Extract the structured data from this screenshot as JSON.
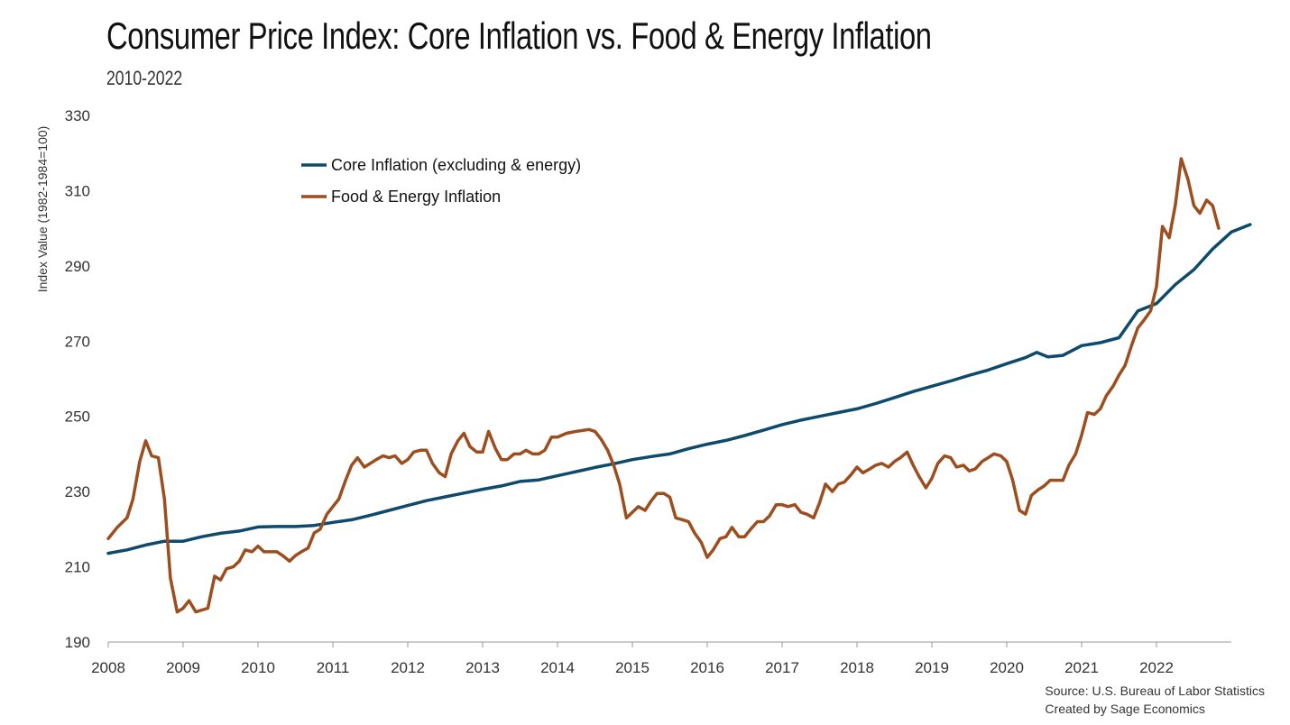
{
  "header": {
    "title": "Consumer Price Index: Core Inflation vs. Food & Energy Inflation",
    "subtitle": "2010-2022"
  },
  "footer": {
    "source_line1": "Source: U.S. Bureau of Labor Statistics",
    "source_line2": "Created by Sage Economics"
  },
  "colors": {
    "core": "#0d4a6b",
    "food_energy": "#9c4e1e",
    "axis": "#999999"
  },
  "chart_data": {
    "type": "line",
    "title": "Consumer Price Index: Core Inflation vs. Food & Energy Inflation",
    "subtitle": "2010-2022",
    "xlabel": "",
    "ylabel": "Index Value (1982-1984=100)",
    "xlim": [
      2008,
      2023
    ],
    "ylim": [
      190,
      330
    ],
    "yticks": [
      190,
      210,
      230,
      250,
      270,
      290,
      310,
      330
    ],
    "xticks": [
      "2008",
      "2009",
      "2010",
      "2011",
      "2012",
      "2013",
      "2014",
      "2015",
      "2016",
      "2017",
      "2018",
      "2019",
      "2020",
      "2021",
      "2022"
    ],
    "grid": false,
    "legend_position": "top-left",
    "series": [
      {
        "name": "Core Inflation (excluding & energy)",
        "color": "#0d4a6b",
        "points": [
          [
            2008.0,
            213.6
          ],
          [
            2008.25,
            214.5
          ],
          [
            2008.5,
            215.8
          ],
          [
            2008.75,
            216.8
          ],
          [
            2009.0,
            216.8
          ],
          [
            2009.25,
            218.0
          ],
          [
            2009.5,
            218.9
          ],
          [
            2009.75,
            219.5
          ],
          [
            2010.0,
            220.6
          ],
          [
            2010.25,
            220.7
          ],
          [
            2010.5,
            220.7
          ],
          [
            2010.75,
            221.0
          ],
          [
            2011.0,
            221.8
          ],
          [
            2011.25,
            222.5
          ],
          [
            2011.5,
            223.7
          ],
          [
            2011.75,
            225.0
          ],
          [
            2012.0,
            226.3
          ],
          [
            2012.25,
            227.6
          ],
          [
            2012.5,
            228.6
          ],
          [
            2012.75,
            229.6
          ],
          [
            2013.0,
            230.6
          ],
          [
            2013.25,
            231.5
          ],
          [
            2013.5,
            232.7
          ],
          [
            2013.75,
            233.1
          ],
          [
            2014.0,
            234.2
          ],
          [
            2014.25,
            235.3
          ],
          [
            2014.5,
            236.4
          ],
          [
            2014.75,
            237.4
          ],
          [
            2015.0,
            238.5
          ],
          [
            2015.25,
            239.3
          ],
          [
            2015.5,
            240.0
          ],
          [
            2015.75,
            241.4
          ],
          [
            2016.0,
            242.6
          ],
          [
            2016.25,
            243.6
          ],
          [
            2016.5,
            244.9
          ],
          [
            2016.75,
            246.3
          ],
          [
            2017.0,
            247.8
          ],
          [
            2017.25,
            249.0
          ],
          [
            2017.5,
            250.0
          ],
          [
            2017.75,
            251.0
          ],
          [
            2018.0,
            252.0
          ],
          [
            2018.25,
            253.4
          ],
          [
            2018.5,
            255.0
          ],
          [
            2018.75,
            256.6
          ],
          [
            2019.0,
            258.0
          ],
          [
            2019.25,
            259.4
          ],
          [
            2019.5,
            260.9
          ],
          [
            2019.75,
            262.3
          ],
          [
            2020.0,
            264.0
          ],
          [
            2020.25,
            265.6
          ],
          [
            2020.4,
            267.0
          ],
          [
            2020.55,
            265.8
          ],
          [
            2020.75,
            266.2
          ],
          [
            2021.0,
            268.8
          ],
          [
            2021.25,
            269.6
          ],
          [
            2021.5,
            270.9
          ],
          [
            2021.75,
            278.0
          ],
          [
            2022.0,
            280.0
          ],
          [
            2022.25,
            285.0
          ],
          [
            2022.5,
            289.0
          ],
          [
            2022.75,
            294.5
          ],
          [
            2023.0,
            299.0
          ],
          [
            2023.25,
            301.0
          ]
        ]
      },
      {
        "name": "Food & Energy Inflation",
        "color": "#9c4e1e",
        "points": [
          [
            2008.0,
            217.5
          ],
          [
            2008.12,
            220.5
          ],
          [
            2008.25,
            223.0
          ],
          [
            2008.33,
            228.0
          ],
          [
            2008.42,
            238.0
          ],
          [
            2008.5,
            243.5
          ],
          [
            2008.58,
            239.5
          ],
          [
            2008.67,
            239.0
          ],
          [
            2008.75,
            228.0
          ],
          [
            2008.83,
            207.0
          ],
          [
            2008.92,
            198.0
          ],
          [
            2009.0,
            199.0
          ],
          [
            2009.08,
            201.0
          ],
          [
            2009.17,
            198.0
          ],
          [
            2009.25,
            198.5
          ],
          [
            2009.33,
            199.0
          ],
          [
            2009.42,
            207.5
          ],
          [
            2009.5,
            206.5
          ],
          [
            2009.58,
            209.5
          ],
          [
            2009.67,
            210.0
          ],
          [
            2009.75,
            211.5
          ],
          [
            2009.83,
            214.5
          ],
          [
            2009.92,
            214.0
          ],
          [
            2010.0,
            215.5
          ],
          [
            2010.08,
            214.0
          ],
          [
            2010.17,
            214.0
          ],
          [
            2010.25,
            214.0
          ],
          [
            2010.33,
            213.0
          ],
          [
            2010.42,
            211.5
          ],
          [
            2010.5,
            213.0
          ],
          [
            2010.58,
            214.0
          ],
          [
            2010.67,
            215.0
          ],
          [
            2010.75,
            219.0
          ],
          [
            2010.83,
            220.0
          ],
          [
            2010.92,
            224.0
          ],
          [
            2011.0,
            226.0
          ],
          [
            2011.08,
            228.0
          ],
          [
            2011.17,
            233.0
          ],
          [
            2011.25,
            237.0
          ],
          [
            2011.33,
            239.0
          ],
          [
            2011.42,
            236.5
          ],
          [
            2011.5,
            237.5
          ],
          [
            2011.58,
            238.5
          ],
          [
            2011.67,
            239.5
          ],
          [
            2011.75,
            239.0
          ],
          [
            2011.83,
            239.5
          ],
          [
            2011.92,
            237.5
          ],
          [
            2012.0,
            238.5
          ],
          [
            2012.08,
            240.5
          ],
          [
            2012.17,
            241.0
          ],
          [
            2012.25,
            241.0
          ],
          [
            2012.33,
            237.5
          ],
          [
            2012.42,
            235.0
          ],
          [
            2012.5,
            234.0
          ],
          [
            2012.58,
            240.0
          ],
          [
            2012.67,
            243.5
          ],
          [
            2012.75,
            245.5
          ],
          [
            2012.83,
            242.0
          ],
          [
            2012.92,
            240.5
          ],
          [
            2013.0,
            240.5
          ],
          [
            2013.08,
            246.0
          ],
          [
            2013.17,
            241.5
          ],
          [
            2013.25,
            238.5
          ],
          [
            2013.33,
            238.5
          ],
          [
            2013.42,
            240.0
          ],
          [
            2013.5,
            240.0
          ],
          [
            2013.58,
            241.0
          ],
          [
            2013.67,
            240.0
          ],
          [
            2013.75,
            240.0
          ],
          [
            2013.83,
            241.0
          ],
          [
            2013.92,
            244.5
          ],
          [
            2014.0,
            244.5
          ],
          [
            2014.12,
            245.5
          ],
          [
            2014.25,
            246.0
          ],
          [
            2014.42,
            246.5
          ],
          [
            2014.5,
            246.0
          ],
          [
            2014.58,
            244.0
          ],
          [
            2014.67,
            241.0
          ],
          [
            2014.75,
            237.0
          ],
          [
            2014.83,
            232.0
          ],
          [
            2014.92,
            223.0
          ],
          [
            2015.0,
            224.5
          ],
          [
            2015.08,
            226.0
          ],
          [
            2015.17,
            225.0
          ],
          [
            2015.25,
            227.5
          ],
          [
            2015.33,
            229.5
          ],
          [
            2015.42,
            229.5
          ],
          [
            2015.5,
            228.5
          ],
          [
            2015.58,
            223.0
          ],
          [
            2015.67,
            222.5
          ],
          [
            2015.75,
            222.0
          ],
          [
            2015.83,
            219.0
          ],
          [
            2015.92,
            216.5
          ],
          [
            2016.0,
            212.5
          ],
          [
            2016.08,
            214.5
          ],
          [
            2016.17,
            217.5
          ],
          [
            2016.25,
            218.0
          ],
          [
            2016.33,
            220.5
          ],
          [
            2016.42,
            218.0
          ],
          [
            2016.5,
            218.0
          ],
          [
            2016.58,
            220.0
          ],
          [
            2016.67,
            222.0
          ],
          [
            2016.75,
            222.0
          ],
          [
            2016.83,
            223.5
          ],
          [
            2016.92,
            226.5
          ],
          [
            2017.0,
            226.5
          ],
          [
            2017.08,
            226.0
          ],
          [
            2017.17,
            226.5
          ],
          [
            2017.25,
            224.5
          ],
          [
            2017.33,
            224.0
          ],
          [
            2017.42,
            223.0
          ],
          [
            2017.5,
            227.0
          ],
          [
            2017.58,
            232.0
          ],
          [
            2017.67,
            230.0
          ],
          [
            2017.75,
            232.0
          ],
          [
            2017.83,
            232.5
          ],
          [
            2017.92,
            234.5
          ],
          [
            2018.0,
            236.5
          ],
          [
            2018.08,
            235.0
          ],
          [
            2018.17,
            236.0
          ],
          [
            2018.25,
            237.0
          ],
          [
            2018.33,
            237.5
          ],
          [
            2018.42,
            236.5
          ],
          [
            2018.5,
            238.0
          ],
          [
            2018.58,
            239.0
          ],
          [
            2018.67,
            240.5
          ],
          [
            2018.75,
            237.0
          ],
          [
            2018.83,
            234.0
          ],
          [
            2018.92,
            231.0
          ],
          [
            2019.0,
            233.5
          ],
          [
            2019.08,
            237.5
          ],
          [
            2019.17,
            239.5
          ],
          [
            2019.25,
            239.0
          ],
          [
            2019.33,
            236.5
          ],
          [
            2019.42,
            237.0
          ],
          [
            2019.5,
            235.5
          ],
          [
            2019.58,
            236.0
          ],
          [
            2019.67,
            238.0
          ],
          [
            2019.75,
            239.0
          ],
          [
            2019.83,
            240.0
          ],
          [
            2019.92,
            239.5
          ],
          [
            2020.0,
            238.0
          ],
          [
            2020.08,
            233.0
          ],
          [
            2020.17,
            225.0
          ],
          [
            2020.25,
            224.0
          ],
          [
            2020.33,
            229.0
          ],
          [
            2020.42,
            230.5
          ],
          [
            2020.5,
            231.5
          ],
          [
            2020.58,
            233.0
          ],
          [
            2020.67,
            233.0
          ],
          [
            2020.75,
            233.0
          ],
          [
            2020.83,
            237.0
          ],
          [
            2020.92,
            240.0
          ],
          [
            2021.0,
            245.0
          ],
          [
            2021.08,
            251.0
          ],
          [
            2021.17,
            250.5
          ],
          [
            2021.25,
            252.0
          ],
          [
            2021.33,
            255.5
          ],
          [
            2021.42,
            258.0
          ],
          [
            2021.5,
            261.0
          ],
          [
            2021.58,
            263.5
          ],
          [
            2021.67,
            269.0
          ],
          [
            2021.75,
            273.5
          ],
          [
            2021.83,
            275.5
          ],
          [
            2021.92,
            278.0
          ],
          [
            2022.0,
            284.5
          ],
          [
            2022.08,
            300.5
          ],
          [
            2022.17,
            297.5
          ],
          [
            2022.25,
            306.0
          ],
          [
            2022.33,
            318.5
          ],
          [
            2022.42,
            313.0
          ],
          [
            2022.5,
            306.0
          ],
          [
            2022.58,
            304.0
          ],
          [
            2022.67,
            307.5
          ],
          [
            2022.75,
            306.0
          ],
          [
            2022.83,
            300.0
          ]
        ]
      }
    ]
  }
}
